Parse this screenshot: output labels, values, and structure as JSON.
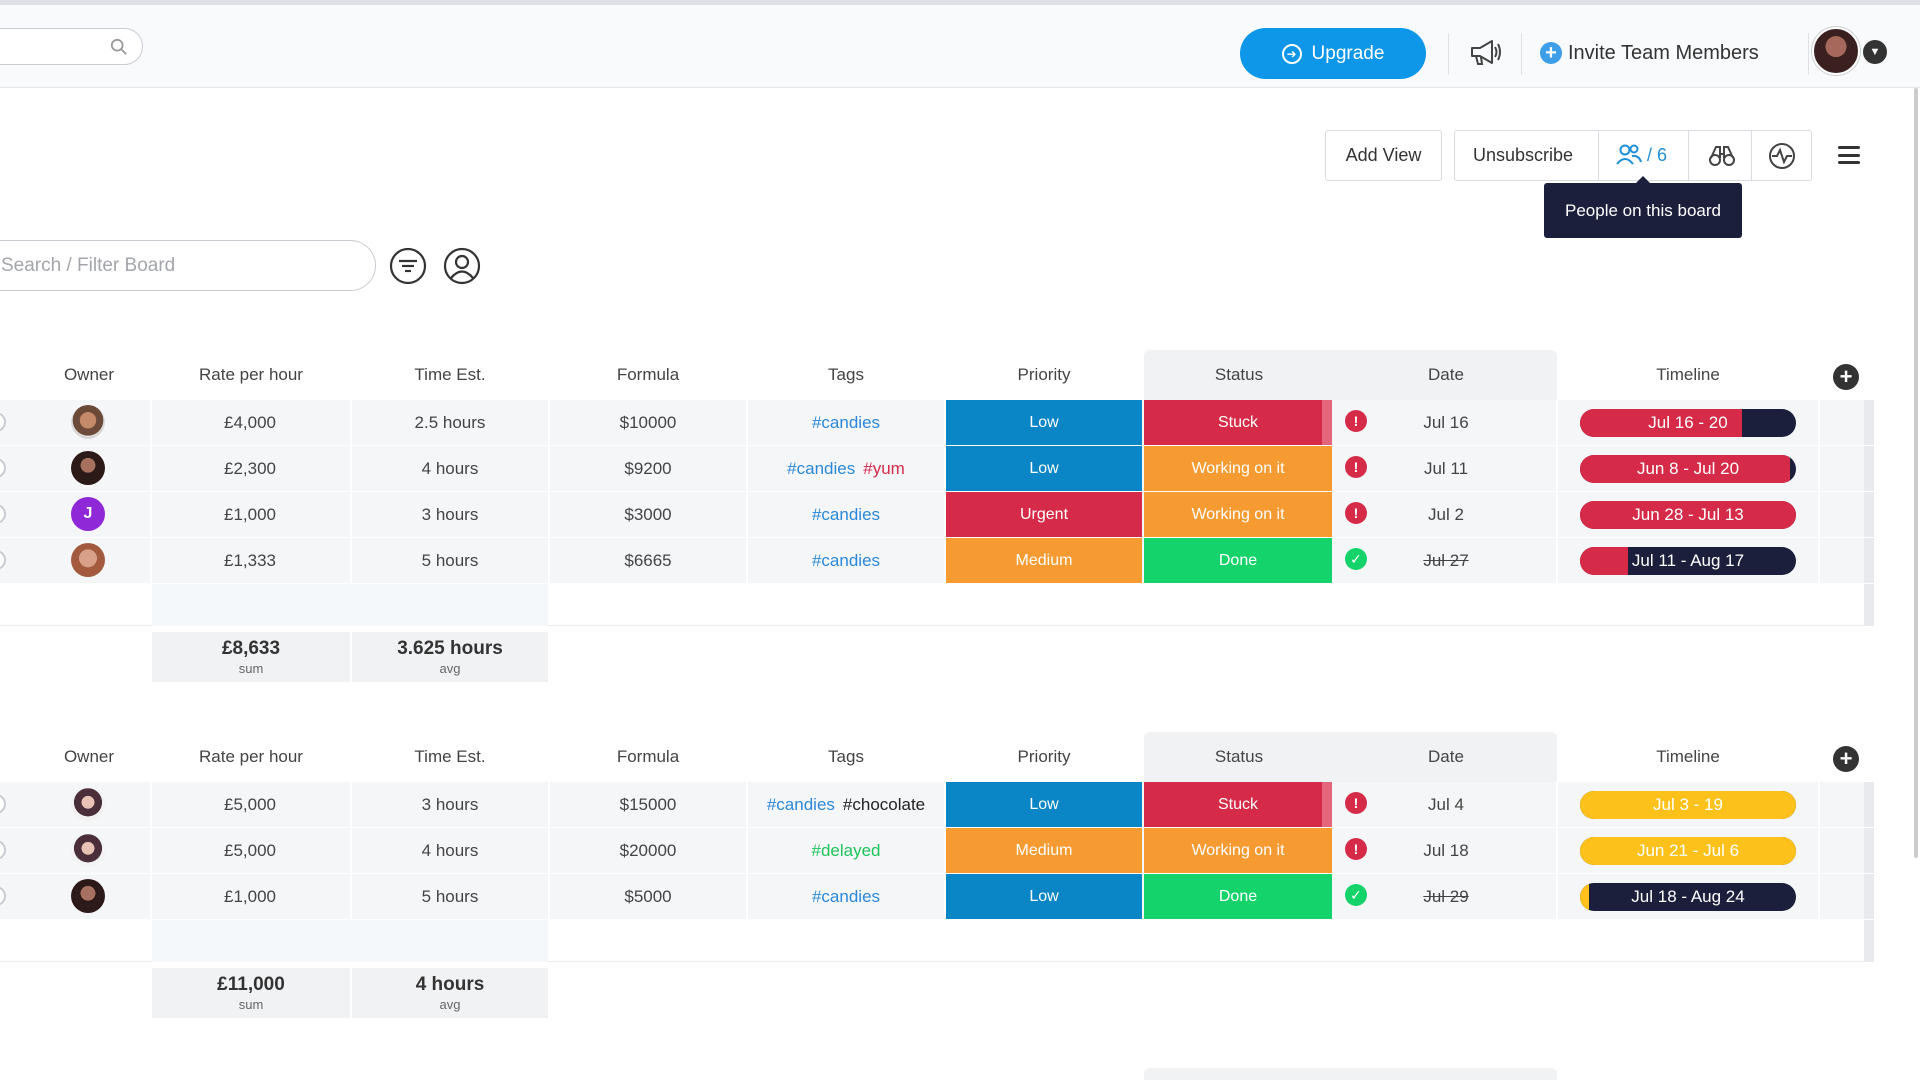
{
  "topbar": {
    "upgrade_label": "Upgrade",
    "invite_label": "Invite Team Members"
  },
  "board": {
    "add_view_label": "Add View",
    "unsubscribe_label": "Unsubscribe",
    "people_count": "/ 6",
    "tooltip": "People on this board",
    "filter_placeholder": "Search / Filter Board"
  },
  "columns": [
    "Owner",
    "Rate per hour",
    "Time Est.",
    "Formula",
    "Tags",
    "Priority",
    "Status",
    "Date",
    "Timeline"
  ],
  "colors": {
    "low": "#0a85c6",
    "urgent": "#d52b48",
    "medium": "#f69a32",
    "stuck": "#d52b48",
    "working": "#f69a32",
    "done": "#14d36b",
    "timeline_red": "#d52b48",
    "timeline_navy": "#1c1f3b",
    "timeline_yellow": "#fcc21b"
  },
  "groups": [
    {
      "rows": [
        {
          "owner": "avatar-man",
          "rate": "£4,000",
          "time": "2.5 hours",
          "formula": "$10000",
          "tags": [
            {
              "t": "#candies",
              "c": "blue"
            }
          ],
          "priority": "Low",
          "status": "Stuck",
          "date": "Jul 16",
          "date_done": false,
          "timeline": "Jul 16 - 20",
          "tl_progress": 0.75,
          "tl_color": "red"
        },
        {
          "owner": "avatar-woman",
          "rate": "£2,300",
          "time": "4 hours",
          "formula": "$9200",
          "tags": [
            {
              "t": "#candies",
              "c": "blue"
            },
            {
              "t": "#yum",
              "c": "red"
            }
          ],
          "priority": "Low",
          "status": "Working on it",
          "date": "Jul 11",
          "date_done": false,
          "timeline": "Jun 8 - Jul 20",
          "tl_progress": 0.97,
          "tl_color": "red"
        },
        {
          "owner": "J",
          "rate": "£1,000",
          "time": "3 hours",
          "formula": "$3000",
          "tags": [
            {
              "t": "#candies",
              "c": "blue"
            }
          ],
          "priority": "Urgent",
          "status": "Working on it",
          "date": "Jul 2",
          "date_done": false,
          "timeline": "Jun 28 - Jul 13",
          "tl_progress": 1.0,
          "tl_color": "red"
        },
        {
          "owner": "avatar-woman2",
          "rate": "£1,333",
          "time": "5 hours",
          "formula": "$6665",
          "tags": [
            {
              "t": "#candies",
              "c": "blue"
            }
          ],
          "priority": "Medium",
          "status": "Done",
          "date": "Jul 27",
          "date_done": true,
          "timeline": "Jul 11 - Aug 17",
          "tl_progress": 0.22,
          "tl_color": "red"
        }
      ],
      "summary": {
        "rate": "£8,633",
        "rate_label": "sum",
        "time": "3.625 hours",
        "time_label": "avg"
      }
    },
    {
      "rows": [
        {
          "owner": "avatar-woman3",
          "rate": "£5,000",
          "time": "3 hours",
          "formula": "$15000",
          "tags": [
            {
              "t": "#candies",
              "c": "blue"
            },
            {
              "t": "#chocolate",
              "c": "dark"
            }
          ],
          "priority": "Low",
          "status": "Stuck",
          "date": "Jul 4",
          "date_done": false,
          "timeline": "Jul 3 - 19",
          "tl_progress": 1.0,
          "tl_color": "yellow"
        },
        {
          "owner": "avatar-woman3",
          "rate": "£5,000",
          "time": "4 hours",
          "formula": "$20000",
          "tags": [
            {
              "t": "#delayed",
              "c": "green"
            }
          ],
          "priority": "Medium",
          "status": "Working on it",
          "date": "Jul 18",
          "date_done": false,
          "timeline": "Jun 21 - Jul 6",
          "tl_progress": 1.0,
          "tl_color": "yellow"
        },
        {
          "owner": "avatar-woman",
          "rate": "£1,000",
          "time": "5 hours",
          "formula": "$5000",
          "tags": [
            {
              "t": "#candies",
              "c": "blue"
            }
          ],
          "priority": "Low",
          "status": "Done",
          "date": "Jul 29",
          "date_done": true,
          "timeline": "Jul 18 - Aug 24",
          "tl_progress": 0.04,
          "tl_color": "yellow"
        }
      ],
      "summary": {
        "rate": "£11,000",
        "rate_label": "sum",
        "time": "4 hours",
        "time_label": "avg"
      }
    }
  ]
}
